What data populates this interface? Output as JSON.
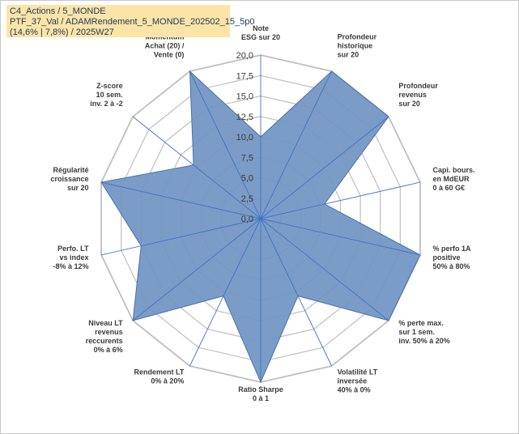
{
  "header": {
    "line1": "C4_Actions / 5_MONDE",
    "line2": "PTF_37_Val / ADAMRendement_5_MONDE_202502_15_5p0",
    "line3": "(14,6% | 7,8%) / 2025W27"
  },
  "colors": {
    "fill": "#7094c3",
    "stroke": "#4a72b0",
    "spoke": "#4472c4",
    "grid": "#bfbfbf"
  },
  "chart_data": {
    "type": "radar",
    "rmin": 0,
    "rmax": 20,
    "tick_labels": [
      "0,0",
      "2,5",
      "5,0",
      "7,5",
      "10,0",
      "12,5",
      "15,0",
      "17,5",
      "20,0"
    ],
    "axes": [
      {
        "label_top": "",
        "label": [
          "Note",
          "ESG sur 20"
        ],
        "value": 10.0
      },
      {
        "label_top": "",
        "label": [
          "Profondeur",
          "historique",
          "sur 20"
        ],
        "value": 20.0
      },
      {
        "label_top": "",
        "label": [
          "Profondeur",
          "revenus",
          "sur 20"
        ],
        "value": 20.0
      },
      {
        "label_top": "",
        "label": [
          "Capi. bours.",
          "en MdEUR",
          "0 à 60 G€"
        ],
        "value": 8.0
      },
      {
        "label_top": "",
        "label": [
          "% perfo 1A",
          "positive",
          "50% à 80%"
        ],
        "value": 20.0
      },
      {
        "label_top": "",
        "label": [
          "% perte max.",
          "sur 1 sem.",
          "inv. 50% à 20%"
        ],
        "value": 20.0
      },
      {
        "label_top": "",
        "label": [
          "Volatilité LT",
          "inversée",
          "40% à 0%"
        ],
        "value": 10.5
      },
      {
        "label_top": "",
        "label": [
          "Ratio Sharpe",
          "0 à 1"
        ],
        "value": 20.0
      },
      {
        "label_top": "",
        "label": [
          "Rendement LT",
          "0% à 20%"
        ],
        "value": 10.5
      },
      {
        "label_top": "",
        "label": [
          "Niveau LT",
          "revenus",
          "reccurents",
          "0% à 6%"
        ],
        "value": 20.0
      },
      {
        "label_top": "",
        "label": [
          "Perfo. LT",
          "vs index",
          "-8% à 12%"
        ],
        "value": 15.0
      },
      {
        "label_top": "",
        "label": [
          "Régularité",
          "croissance",
          "sur 20"
        ],
        "value": 20.0
      },
      {
        "label_top": "",
        "label": [
          "Z-score",
          "10 sem.",
          "inv. 2 à -2"
        ],
        "value": 10.5
      },
      {
        "label_top": "Momentum",
        "label": [
          "Achat (20) /",
          "Vente (0)"
        ],
        "value": 20.0
      }
    ]
  }
}
